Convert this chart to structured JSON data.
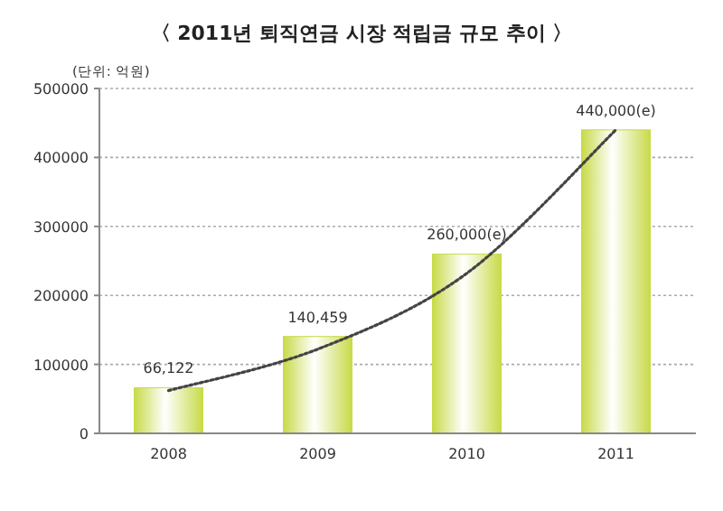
{
  "chart_data": {
    "type": "bar",
    "title": "〈 2011년 퇴직연금 시장 적립금 규모 추이 〉",
    "ylabel": "(단위: 억원)",
    "categories": [
      "2008",
      "2009",
      "2010",
      "2011"
    ],
    "series": [
      {
        "color": "#c8da48",
        "values": [
          66122,
          140459,
          260000,
          440000
        ],
        "value_labels": [
          "66,122",
          "140,459",
          "260,000(e)",
          "440,000(e)"
        ]
      },
      {
        "type": "line",
        "color": "#444444",
        "line_style": "dotted",
        "values": [
          62000,
          122000,
          232000,
          440000
        ]
      }
    ],
    "ylim": [
      0,
      500000
    ],
    "yticks": [
      0,
      100000,
      200000,
      300000,
      400000,
      500000
    ],
    "grid": "y"
  }
}
